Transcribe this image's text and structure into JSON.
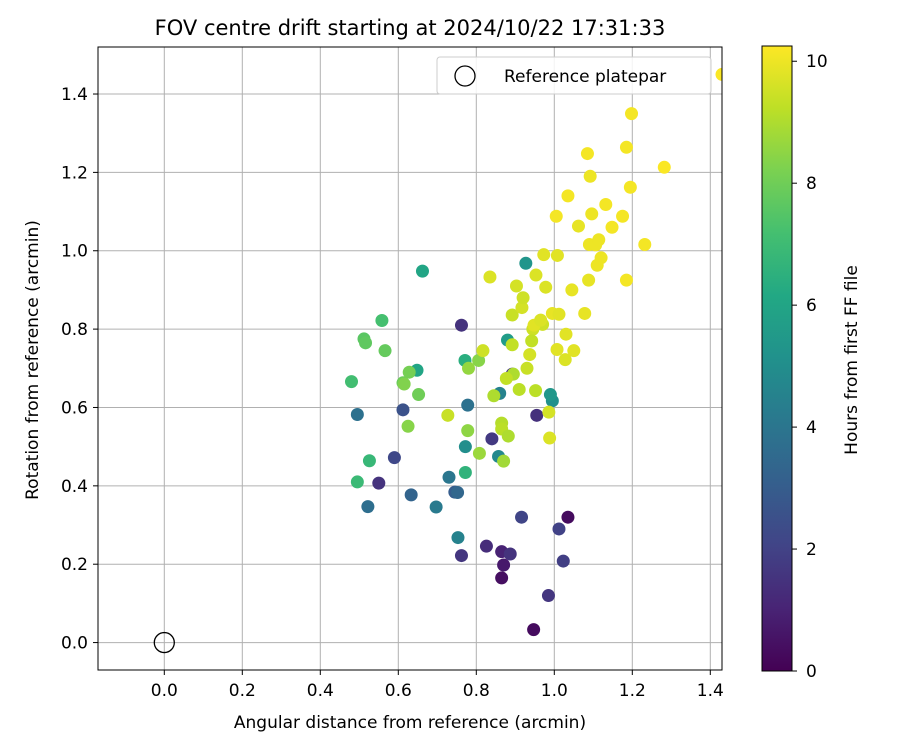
{
  "chart_data": {
    "type": "scatter",
    "title": "FOV centre drift starting at 2024/10/22 17:31:33",
    "xlabel": "Angular distance from reference (arcmin)",
    "ylabel": "Rotation from reference (arcmin)",
    "xlim": [
      -0.17,
      1.43
    ],
    "ylim": [
      -0.07,
      1.52
    ],
    "xticks": [
      0.0,
      0.2,
      0.4,
      0.6,
      0.8,
      1.0,
      1.2,
      1.4
    ],
    "xtick_labels": [
      "0.0",
      "0.2",
      "0.4",
      "0.6",
      "0.8",
      "1.0",
      "1.2",
      "1.4"
    ],
    "yticks": [
      0.0,
      0.2,
      0.4,
      0.6,
      0.8,
      1.0,
      1.2,
      1.4
    ],
    "ytick_labels": [
      "0.0",
      "0.2",
      "0.4",
      "0.6",
      "0.8",
      "1.0",
      "1.2",
      "1.4"
    ],
    "grid": true,
    "legend": {
      "placement": "upper-right",
      "entry": "Reference platepar"
    },
    "reference_point": {
      "x": 0.0,
      "y": 0.0
    },
    "colorbar": {
      "label": "Hours from first FF file",
      "range": [
        0,
        10.25
      ],
      "ticks": [
        0,
        2,
        4,
        6,
        8,
        10
      ],
      "tick_labels": [
        "0",
        "2",
        "4",
        "6",
        "8",
        "10"
      ],
      "colormap": "viridis"
    },
    "points": [
      {
        "x": 0.947,
        "y": 0.033,
        "c": 0.3
      },
      {
        "x": 0.865,
        "y": 0.165,
        "c": 0.4
      },
      {
        "x": 1.035,
        "y": 0.32,
        "c": 0.3
      },
      {
        "x": 0.87,
        "y": 0.198,
        "c": 0.7
      },
      {
        "x": 0.865,
        "y": 0.232,
        "c": 1.0
      },
      {
        "x": 0.887,
        "y": 0.226,
        "c": 1.5
      },
      {
        "x": 0.826,
        "y": 0.246,
        "c": 1.3
      },
      {
        "x": 0.985,
        "y": 0.12,
        "c": 1.6
      },
      {
        "x": 1.023,
        "y": 0.208,
        "c": 1.9
      },
      {
        "x": 1.012,
        "y": 0.29,
        "c": 2.0
      },
      {
        "x": 0.916,
        "y": 0.32,
        "c": 2.1
      },
      {
        "x": 0.762,
        "y": 0.222,
        "c": 1.6
      },
      {
        "x": 0.55,
        "y": 0.407,
        "c": 1.5
      },
      {
        "x": 0.762,
        "y": 0.81,
        "c": 1.5
      },
      {
        "x": 0.84,
        "y": 0.52,
        "c": 1.7
      },
      {
        "x": 0.955,
        "y": 0.58,
        "c": 1.4
      },
      {
        "x": 0.892,
        "y": 0.685,
        "c": 1.5
      },
      {
        "x": 0.59,
        "y": 0.472,
        "c": 2.2
      },
      {
        "x": 0.612,
        "y": 0.594,
        "c": 2.6
      },
      {
        "x": 0.633,
        "y": 0.377,
        "c": 3.3
      },
      {
        "x": 0.745,
        "y": 0.384,
        "c": 3.0
      },
      {
        "x": 0.752,
        "y": 0.383,
        "c": 3.4
      },
      {
        "x": 0.522,
        "y": 0.347,
        "c": 3.7
      },
      {
        "x": 0.495,
        "y": 0.582,
        "c": 3.8
      },
      {
        "x": 0.778,
        "y": 0.606,
        "c": 3.8
      },
      {
        "x": 0.73,
        "y": 0.422,
        "c": 4.0
      },
      {
        "x": 0.697,
        "y": 0.346,
        "c": 4.2
      },
      {
        "x": 0.753,
        "y": 0.268,
        "c": 4.5
      },
      {
        "x": 0.857,
        "y": 0.475,
        "c": 4.8
      },
      {
        "x": 0.86,
        "y": 0.636,
        "c": 4.5
      },
      {
        "x": 0.772,
        "y": 0.5,
        "c": 5.0
      },
      {
        "x": 0.927,
        "y": 0.968,
        "c": 5.3
      },
      {
        "x": 0.995,
        "y": 0.617,
        "c": 5.1
      },
      {
        "x": 0.99,
        "y": 0.633,
        "c": 5.4
      },
      {
        "x": 0.88,
        "y": 0.772,
        "c": 5.6
      },
      {
        "x": 0.648,
        "y": 0.695,
        "c": 6.0
      },
      {
        "x": 0.662,
        "y": 0.948,
        "c": 6.0
      },
      {
        "x": 0.771,
        "y": 0.72,
        "c": 6.4
      },
      {
        "x": 0.772,
        "y": 0.434,
        "c": 6.6
      },
      {
        "x": 0.526,
        "y": 0.464,
        "c": 6.8
      },
      {
        "x": 0.495,
        "y": 0.41,
        "c": 6.9
      },
      {
        "x": 0.48,
        "y": 0.666,
        "c": 7.1
      },
      {
        "x": 0.558,
        "y": 0.822,
        "c": 7.2
      },
      {
        "x": 0.512,
        "y": 0.775,
        "c": 7.6
      },
      {
        "x": 0.516,
        "y": 0.765,
        "c": 7.7
      },
      {
        "x": 0.566,
        "y": 0.745,
        "c": 7.8
      },
      {
        "x": 0.612,
        "y": 0.663,
        "c": 7.9
      },
      {
        "x": 0.652,
        "y": 0.633,
        "c": 8.0
      },
      {
        "x": 0.628,
        "y": 0.69,
        "c": 8.1
      },
      {
        "x": 0.615,
        "y": 0.66,
        "c": 8.3
      },
      {
        "x": 0.625,
        "y": 0.552,
        "c": 8.4
      },
      {
        "x": 0.778,
        "y": 0.541,
        "c": 8.5
      },
      {
        "x": 0.78,
        "y": 0.7,
        "c": 8.6
      },
      {
        "x": 0.806,
        "y": 0.72,
        "c": 8.4
      },
      {
        "x": 0.808,
        "y": 0.483,
        "c": 8.7
      },
      {
        "x": 0.87,
        "y": 0.463,
        "c": 8.8
      },
      {
        "x": 0.845,
        "y": 0.63,
        "c": 9.0
      },
      {
        "x": 0.865,
        "y": 0.56,
        "c": 9.1
      },
      {
        "x": 0.865,
        "y": 0.545,
        "c": 9.2
      },
      {
        "x": 0.882,
        "y": 0.527,
        "c": 9.0
      },
      {
        "x": 0.895,
        "y": 0.685,
        "c": 9.0
      },
      {
        "x": 0.877,
        "y": 0.674,
        "c": 9.3
      },
      {
        "x": 0.91,
        "y": 0.646,
        "c": 9.2
      },
      {
        "x": 0.93,
        "y": 0.7,
        "c": 9.4
      },
      {
        "x": 0.952,
        "y": 0.643,
        "c": 9.2
      },
      {
        "x": 0.945,
        "y": 0.8,
        "c": 9.5
      },
      {
        "x": 0.942,
        "y": 0.77,
        "c": 9.3
      },
      {
        "x": 0.97,
        "y": 0.812,
        "c": 9.5
      },
      {
        "x": 0.892,
        "y": 0.76,
        "c": 9.3
      },
      {
        "x": 0.892,
        "y": 0.836,
        "c": 9.4
      },
      {
        "x": 0.917,
        "y": 0.855,
        "c": 9.6
      },
      {
        "x": 0.92,
        "y": 0.88,
        "c": 9.5
      },
      {
        "x": 0.903,
        "y": 0.91,
        "c": 9.6
      },
      {
        "x": 0.953,
        "y": 0.938,
        "c": 9.7
      },
      {
        "x": 0.978,
        "y": 0.907,
        "c": 9.7
      },
      {
        "x": 0.973,
        "y": 0.99,
        "c": 9.8
      },
      {
        "x": 1.008,
        "y": 0.988,
        "c": 9.8
      },
      {
        "x": 0.995,
        "y": 0.84,
        "c": 9.9
      },
      {
        "x": 0.948,
        "y": 0.81,
        "c": 9.8
      },
      {
        "x": 0.965,
        "y": 0.823,
        "c": 9.7
      },
      {
        "x": 0.986,
        "y": 0.588,
        "c": 9.6
      },
      {
        "x": 0.988,
        "y": 0.522,
        "c": 9.7
      },
      {
        "x": 1.007,
        "y": 0.748,
        "c": 9.8
      },
      {
        "x": 1.012,
        "y": 0.838,
        "c": 9.8
      },
      {
        "x": 1.03,
        "y": 0.787,
        "c": 9.8
      },
      {
        "x": 1.028,
        "y": 0.722,
        "c": 9.7
      },
      {
        "x": 1.05,
        "y": 0.745,
        "c": 9.8
      },
      {
        "x": 1.045,
        "y": 0.9,
        "c": 9.9
      },
      {
        "x": 1.062,
        "y": 1.063,
        "c": 9.9
      },
      {
        "x": 1.078,
        "y": 0.84,
        "c": 9.9
      },
      {
        "x": 1.088,
        "y": 0.925,
        "c": 9.9
      },
      {
        "x": 1.09,
        "y": 1.016,
        "c": 10.0
      },
      {
        "x": 1.092,
        "y": 1.19,
        "c": 10.0
      },
      {
        "x": 1.096,
        "y": 1.094,
        "c": 10.0
      },
      {
        "x": 1.106,
        "y": 1.015,
        "c": 10.0
      },
      {
        "x": 1.11,
        "y": 0.963,
        "c": 10.0
      },
      {
        "x": 1.114,
        "y": 1.028,
        "c": 10.0
      },
      {
        "x": 1.12,
        "y": 0.982,
        "c": 10.0
      },
      {
        "x": 1.132,
        "y": 1.118,
        "c": 10.1
      },
      {
        "x": 1.148,
        "y": 1.06,
        "c": 10.1
      },
      {
        "x": 1.175,
        "y": 1.088,
        "c": 10.1
      },
      {
        "x": 1.185,
        "y": 0.925,
        "c": 10.1
      },
      {
        "x": 1.185,
        "y": 1.264,
        "c": 10.1
      },
      {
        "x": 1.195,
        "y": 1.162,
        "c": 10.1
      },
      {
        "x": 1.198,
        "y": 1.35,
        "c": 10.1
      },
      {
        "x": 1.232,
        "y": 1.016,
        "c": 10.1
      },
      {
        "x": 1.282,
        "y": 1.213,
        "c": 10.2
      },
      {
        "x": 1.085,
        "y": 1.248,
        "c": 10.1
      },
      {
        "x": 1.035,
        "y": 1.14,
        "c": 10.1
      },
      {
        "x": 1.005,
        "y": 1.088,
        "c": 10.1
      },
      {
        "x": 0.835,
        "y": 0.933,
        "c": 9.7
      },
      {
        "x": 0.727,
        "y": 0.58,
        "c": 9.4
      },
      {
        "x": 0.817,
        "y": 0.745,
        "c": 9.5
      },
      {
        "x": 0.937,
        "y": 0.735,
        "c": 9.6
      },
      {
        "x": 1.43,
        "y": 1.45,
        "c": 10.2
      }
    ]
  }
}
